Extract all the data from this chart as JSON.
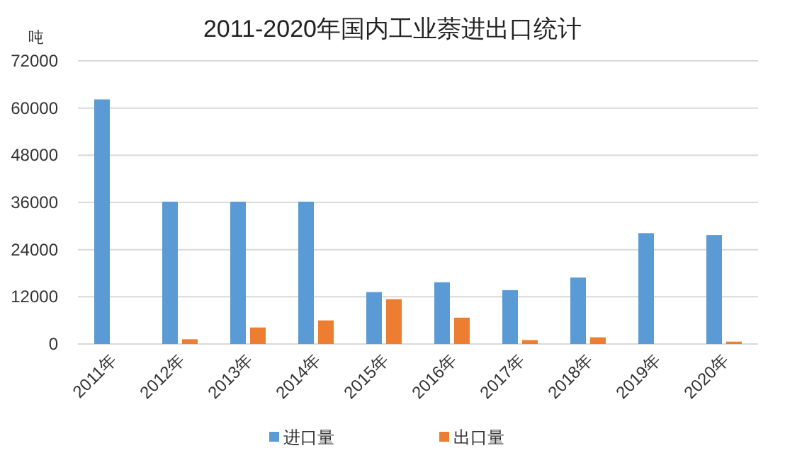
{
  "chart_data": {
    "type": "bar",
    "title": "2011-2020年国内工业萘进出口统计",
    "ylabel": "吨",
    "categories": [
      "2011年",
      "2012年",
      "2013年",
      "2014年",
      "2015年",
      "2016年",
      "2017年",
      "2018年",
      "2019年",
      "2020年"
    ],
    "series": [
      {
        "name": "进口量",
        "color": "#5b9bd5",
        "values": [
          62200,
          36200,
          36200,
          36200,
          13200,
          15700,
          13700,
          16900,
          28200,
          27700
        ]
      },
      {
        "name": "出口量",
        "color": "#ed7d31",
        "values": [
          0,
          1200,
          4200,
          6000,
          11400,
          6700,
          1000,
          1700,
          0,
          600
        ]
      }
    ],
    "ylim": [
      0,
      72000
    ],
    "yticks": [
      0,
      12000,
      24000,
      36000,
      48000,
      60000,
      72000
    ],
    "grid": "y",
    "legend": "bottom"
  }
}
